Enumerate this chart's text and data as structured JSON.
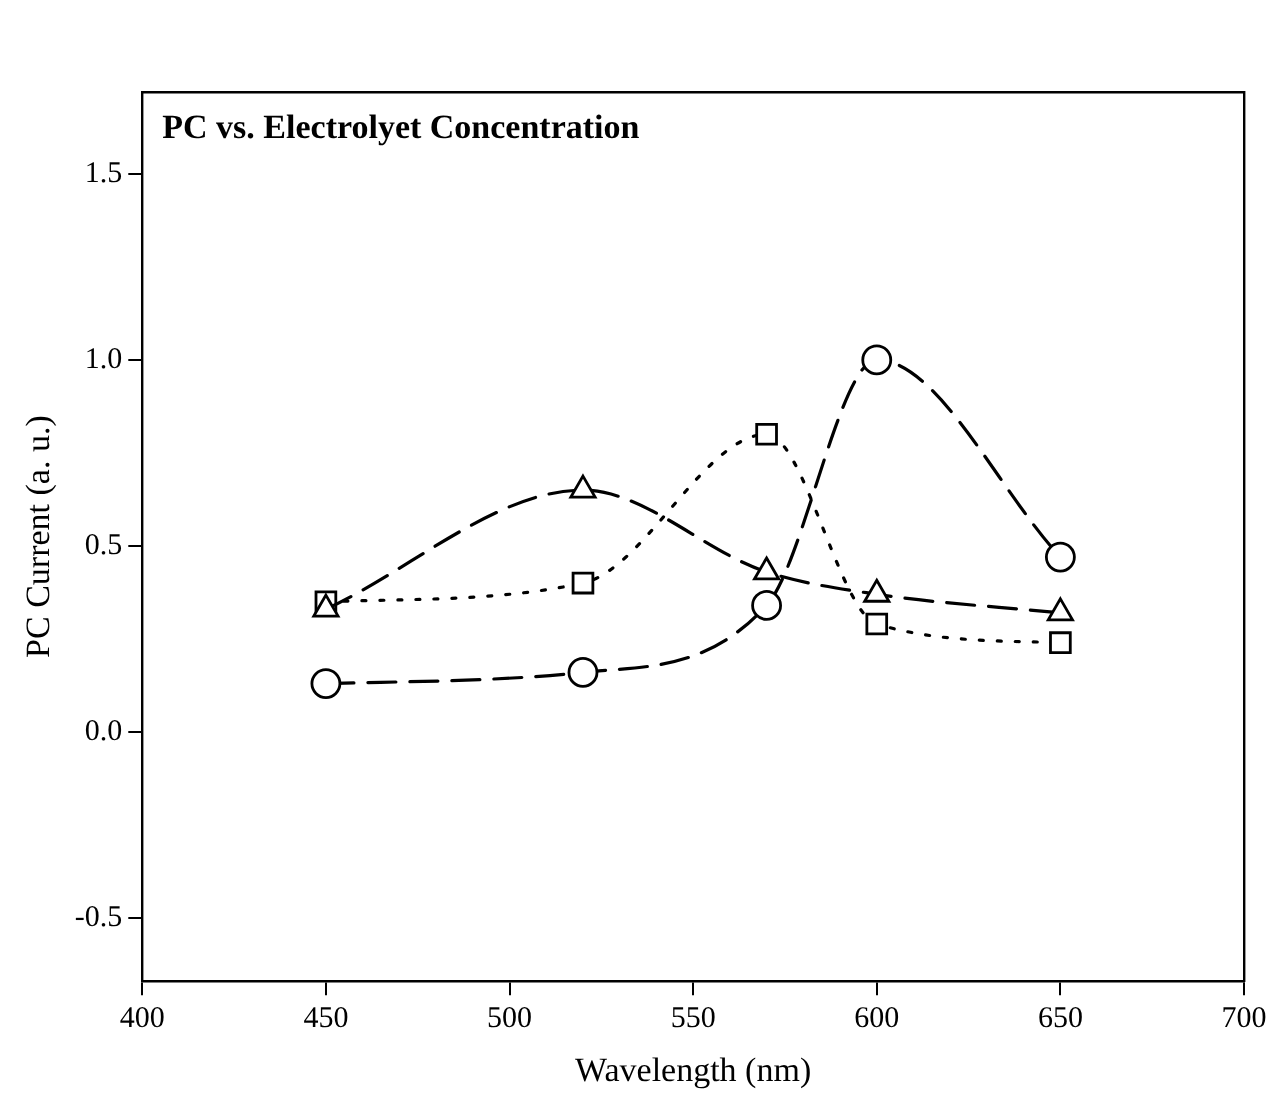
{
  "chart_data": {
    "type": "line",
    "title": "PC vs. Electrolyet Concentration",
    "xlabel": "Wavelength (nm)",
    "ylabel": "PC Current (a. u.)",
    "x": [
      450,
      520,
      570,
      600,
      650
    ],
    "series": [
      {
        "color": "#000000",
        "marker": "circle",
        "line_style": "dashed",
        "values": [
          0.13,
          0.16,
          0.34,
          1.0,
          0.47
        ]
      },
      {
        "color": "#000000",
        "marker": "square",
        "line_style": "dotted",
        "values": [
          0.35,
          0.4,
          0.8,
          0.29,
          0.24
        ]
      },
      {
        "color": "#000000",
        "marker": "triangle",
        "line_style": "dashed",
        "values": [
          0.33,
          0.65,
          0.43,
          0.37,
          0.32
        ]
      }
    ],
    "xlim": [
      400,
      700
    ],
    "xticks": [
      400,
      450,
      500,
      550,
      600,
      650,
      700
    ],
    "ylim": [
      -0.67,
      1.72
    ],
    "yticks": [
      {
        "value": -0.5,
        "label": "-0.5"
      },
      {
        "value": 0,
        "label": "0.0"
      },
      {
        "value": 0.5,
        "label": "0.5"
      },
      {
        "value": 1,
        "label": "1.0"
      },
      {
        "value": 1.5,
        "label": "1.5"
      }
    ],
    "grid": false,
    "legend": false
  }
}
